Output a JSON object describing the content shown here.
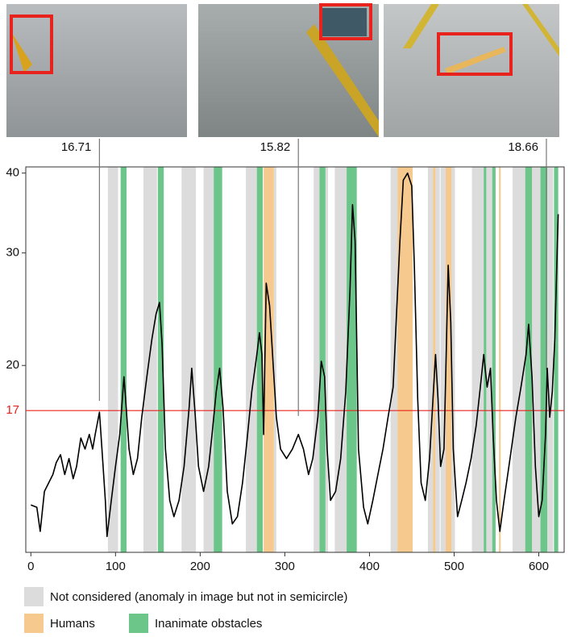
{
  "chart_data": {
    "type": "line",
    "ylog": true,
    "xlim": [
      -6,
      630
    ],
    "ylim": [
      10.2,
      40.9
    ],
    "xticks": [
      0,
      100,
      200,
      300,
      400,
      500,
      600
    ],
    "yticks": [
      20,
      30,
      40
    ],
    "threshold": {
      "value": 17,
      "color": "#e8221c"
    },
    "series": [
      {
        "color": "#000000",
        "x": [
          0,
          7,
          11,
          16,
          21,
          26,
          30,
          35,
          40,
          45,
          50,
          54,
          59,
          64,
          69,
          73,
          76,
          81,
          84,
          88,
          90,
          95,
          100,
          105,
          110,
          112,
          116,
          121,
          126,
          131,
          137,
          143,
          148,
          152,
          155,
          159,
          164,
          169,
          175,
          181,
          187,
          190,
          194,
          198,
          204,
          210,
          214,
          219,
          223,
          227,
          232,
          238,
          244,
          250,
          255,
          261,
          267,
          270,
          273,
          275,
          278,
          282,
          286,
          290,
          295,
          302,
          309,
          316,
          322,
          328,
          333,
          339,
          343,
          347,
          350,
          354,
          360,
          366,
          372,
          377,
          380,
          383,
          387,
          393,
          398,
          404,
          410,
          416,
          422,
          428,
          432,
          436,
          440,
          445,
          450,
          453,
          457,
          461,
          466,
          471,
          475,
          478,
          481,
          484,
          488,
          490,
          493,
          496,
          499,
          504,
          509,
          514,
          520,
          526,
          531,
          535,
          539,
          543,
          546,
          550,
          554,
          559,
          566,
          573,
          579,
          585,
          588,
          592,
          596,
          600,
          604,
          608,
          610,
          613,
          616,
          619,
          623
        ],
        "values": [
          12.1,
          12.0,
          11.0,
          12.7,
          13.1,
          13.5,
          14.1,
          14.5,
          13.5,
          14.3,
          13.3,
          13.9,
          15.4,
          14.8,
          15.6,
          14.8,
          15.6,
          16.9,
          14.8,
          12.3,
          10.8,
          12.3,
          13.9,
          15.6,
          19.2,
          17.7,
          14.8,
          13.5,
          14.3,
          16.6,
          19.2,
          22.0,
          24.1,
          25.1,
          21.6,
          14.8,
          12.3,
          11.6,
          12.3,
          13.9,
          17.2,
          19.8,
          16.8,
          13.9,
          12.7,
          13.9,
          15.6,
          18.2,
          19.8,
          17.2,
          12.7,
          11.3,
          11.6,
          13.1,
          15.1,
          18.2,
          20.8,
          22.5,
          20.8,
          15.6,
          26.9,
          24.8,
          20.3,
          16.6,
          14.8,
          14.3,
          14.8,
          15.6,
          14.8,
          13.5,
          14.3,
          16.6,
          20.3,
          19.2,
          14.8,
          12.3,
          12.7,
          14.3,
          18.2,
          26.3,
          35.7,
          31.3,
          14.8,
          12.0,
          11.3,
          12.3,
          13.5,
          14.8,
          16.6,
          18.5,
          24.1,
          31.3,
          39.0,
          40.0,
          38.2,
          28.7,
          17.7,
          13.1,
          12.3,
          14.3,
          17.7,
          20.8,
          17.7,
          13.9,
          14.8,
          19.2,
          28.7,
          23.4,
          14.8,
          11.6,
          12.3,
          13.1,
          14.3,
          16.1,
          18.5,
          20.8,
          18.5,
          19.8,
          15.6,
          12.3,
          11.0,
          12.3,
          14.3,
          16.6,
          18.5,
          20.8,
          23.2,
          19.2,
          13.9,
          11.6,
          12.3,
          15.6,
          19.8,
          16.6,
          18.2,
          22.0,
          34.5
        ]
      }
    ],
    "bands": [
      {
        "name": "Not considered (anomaly in image but not in semicircle)",
        "color": "#dcdcdc",
        "spans": [
          [
            91,
            103
          ],
          [
            133,
            149
          ],
          [
            178,
            195
          ],
          [
            204,
            216
          ],
          [
            254,
            267
          ],
          [
            287,
            290
          ],
          [
            334,
            341
          ],
          [
            348,
            351
          ],
          [
            359,
            373
          ],
          [
            425,
            433
          ],
          [
            469,
            475
          ],
          [
            478,
            483
          ],
          [
            484,
            490
          ],
          [
            497,
            501
          ],
          [
            521,
            535
          ],
          [
            538,
            545
          ],
          [
            569,
            584
          ],
          [
            592,
            602
          ],
          [
            610,
            617
          ]
        ]
      },
      {
        "name": "Humans",
        "color": "#f6c98f",
        "spans": [
          [
            275,
            287
          ],
          [
            433,
            451
          ],
          [
            475,
            478
          ],
          [
            490,
            497
          ],
          [
            553,
            555
          ]
        ]
      },
      {
        "name": "Inanimate obstacles",
        "color": "#6cc68a",
        "spans": [
          [
            106,
            113
          ],
          [
            150,
            157
          ],
          [
            216,
            226
          ],
          [
            267,
            274
          ],
          [
            341,
            348
          ],
          [
            373,
            385
          ],
          [
            535,
            538
          ],
          [
            545,
            549
          ],
          [
            584,
            592
          ],
          [
            602,
            610
          ],
          [
            618,
            623
          ]
        ]
      }
    ],
    "annotations": [
      {
        "x": 81,
        "value": 16.71
      },
      {
        "x": 316,
        "value": 15.82
      },
      {
        "x": 609,
        "value": 18.66
      }
    ]
  }
}
